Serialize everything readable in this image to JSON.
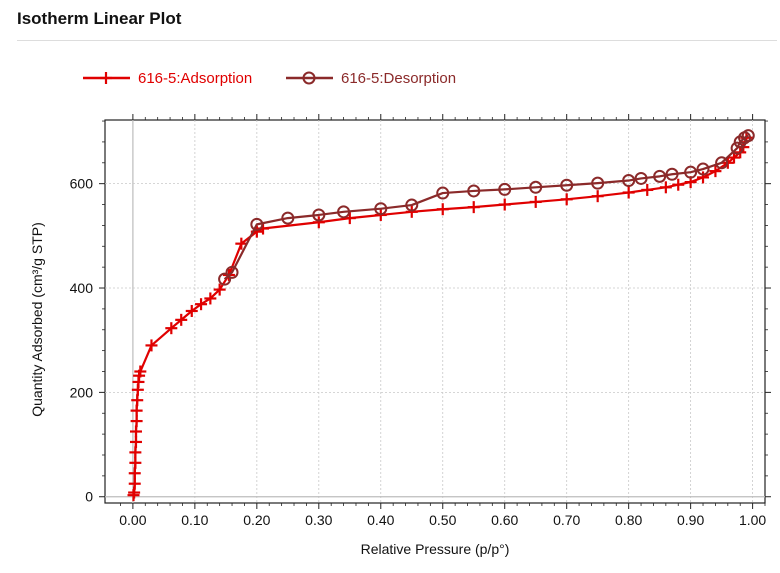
{
  "title": "Isotherm Linear Plot",
  "chart_data": {
    "type": "line",
    "xlabel": "Relative Pressure (p/p°)",
    "ylabel": "Quantity Adsorbed (cm³/g STP)",
    "xlim": [
      -0.045,
      1.02
    ],
    "ylim": [
      -12,
      722
    ],
    "xticks": [
      0.0,
      0.1,
      0.2,
      0.3,
      0.4,
      0.5,
      0.6,
      0.7,
      0.8,
      0.9,
      1.0
    ],
    "xtick_labels": [
      "0.00",
      "0.10",
      "0.20",
      "0.30",
      "0.40",
      "0.50",
      "0.60",
      "0.70",
      "0.80",
      "0.90",
      "1.00"
    ],
    "yticks": [
      0,
      200,
      400,
      600
    ],
    "ytick_labels": [
      "0",
      "200",
      "400",
      "600"
    ],
    "grid": true,
    "legend_position": "top-left",
    "series": [
      {
        "name": "616-5:Adsorption",
        "color": "#e00000",
        "marker": "plus",
        "points": [
          [
            0.001,
            3
          ],
          [
            0.002,
            8
          ],
          [
            0.003,
            25
          ],
          [
            0.003,
            45
          ],
          [
            0.004,
            65
          ],
          [
            0.004,
            85
          ],
          [
            0.005,
            105
          ],
          [
            0.005,
            125
          ],
          [
            0.006,
            145
          ],
          [
            0.006,
            165
          ],
          [
            0.007,
            185
          ],
          [
            0.008,
            205
          ],
          [
            0.009,
            220
          ],
          [
            0.01,
            232
          ],
          [
            0.012,
            240
          ],
          [
            0.03,
            290
          ],
          [
            0.062,
            323
          ],
          [
            0.078,
            339
          ],
          [
            0.095,
            356
          ],
          [
            0.11,
            369
          ],
          [
            0.125,
            380
          ],
          [
            0.14,
            397
          ],
          [
            0.155,
            425
          ],
          [
            0.175,
            485
          ],
          [
            0.2,
            508
          ],
          [
            0.21,
            514
          ],
          [
            0.3,
            526
          ],
          [
            0.35,
            534
          ],
          [
            0.4,
            540
          ],
          [
            0.45,
            546
          ],
          [
            0.5,
            551
          ],
          [
            0.55,
            555
          ],
          [
            0.6,
            560
          ],
          [
            0.65,
            565
          ],
          [
            0.7,
            570
          ],
          [
            0.75,
            576
          ],
          [
            0.8,
            583
          ],
          [
            0.83,
            588
          ],
          [
            0.86,
            593
          ],
          [
            0.88,
            598
          ],
          [
            0.9,
            603
          ],
          [
            0.92,
            612
          ],
          [
            0.94,
            624
          ],
          [
            0.96,
            640
          ],
          [
            0.97,
            650
          ],
          [
            0.98,
            660
          ],
          [
            0.985,
            670
          ],
          [
            0.99,
            688
          ]
        ]
      },
      {
        "name": "616-5:Desorption",
        "color": "#8b2a2a",
        "marker": "circle",
        "points": [
          [
            0.993,
            692
          ],
          [
            0.987,
            688
          ],
          [
            0.98,
            680
          ],
          [
            0.975,
            668
          ],
          [
            0.95,
            640
          ],
          [
            0.92,
            628
          ],
          [
            0.9,
            622
          ],
          [
            0.87,
            618
          ],
          [
            0.85,
            614
          ],
          [
            0.82,
            610
          ],
          [
            0.8,
            606
          ],
          [
            0.75,
            601
          ],
          [
            0.7,
            597
          ],
          [
            0.65,
            593
          ],
          [
            0.6,
            589
          ],
          [
            0.55,
            586
          ],
          [
            0.5,
            582
          ],
          [
            0.45,
            559
          ],
          [
            0.4,
            552
          ],
          [
            0.34,
            546
          ],
          [
            0.3,
            540
          ],
          [
            0.25,
            534
          ],
          [
            0.2,
            522
          ],
          [
            0.16,
            430
          ],
          [
            0.148,
            417
          ]
        ]
      }
    ]
  }
}
